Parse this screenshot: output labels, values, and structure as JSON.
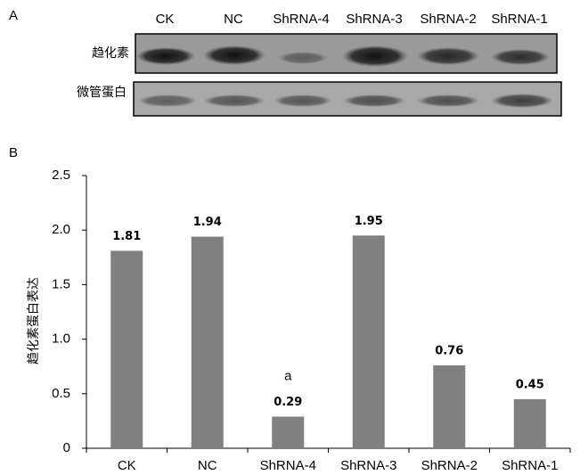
{
  "panel_a": {
    "label": "A",
    "lanes": [
      "CK",
      "NC",
      "ShRNA-4",
      "ShRNA-3",
      "ShRNA-2",
      "ShRNA-1"
    ],
    "rows": [
      "趋化素",
      "微管蛋白"
    ]
  },
  "chart_data": {
    "type": "bar",
    "panel_label": "B",
    "y_label": "趋化素蛋白表达",
    "categories": [
      "CK",
      "NC",
      "ShRNA-4",
      "ShRNA-3",
      "ShRNA-2",
      "ShRNA-1"
    ],
    "values": [
      1.81,
      1.94,
      0.29,
      1.95,
      0.76,
      0.45
    ],
    "color": "#808080",
    "annotations": [
      {
        "category": "ShRNA-4",
        "text": "a"
      }
    ],
    "ylim": [
      0,
      2.5
    ],
    "yticks": [
      0,
      0.5,
      {
        "value": 1,
        "label": "1.0"
      },
      1.5,
      {
        "value": 2,
        "label": "2.0"
      },
      2.5
    ]
  }
}
